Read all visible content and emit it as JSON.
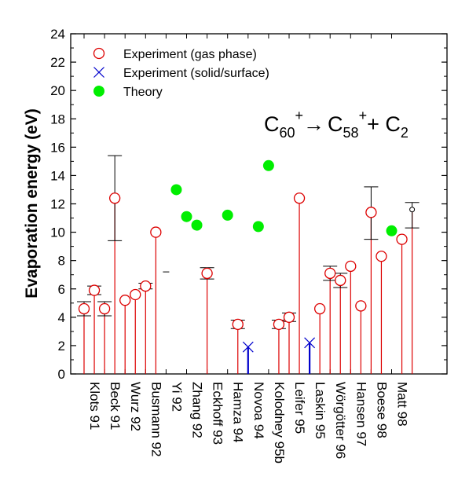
{
  "chart_data": {
    "type": "scatter",
    "ylabel": "Evaporation energy (eV)",
    "ylim": [
      0,
      24
    ],
    "yticks": [
      0,
      2,
      4,
      6,
      8,
      10,
      12,
      14,
      16,
      18,
      20,
      22,
      24
    ],
    "grid": false,
    "legend_position": "top-left",
    "colors": {
      "gas": "#dd0000",
      "solid": "#0000cc",
      "theory": "#00ee00",
      "axis": "#000000"
    },
    "legend": [
      {
        "key": "gas",
        "label": "Experiment (gas phase)"
      },
      {
        "key": "solid",
        "label": "Experiment (solid/surface)"
      },
      {
        "key": "theory",
        "label": "Theory"
      }
    ],
    "annotation": {
      "reaction": "C60+ → C58+ + C2",
      "c": "C",
      "n1": "60",
      "plus": "+",
      "arrow": "→",
      "n2": "58",
      "tail": "+ C",
      "n3": "2"
    },
    "categories": [
      "Klots 91",
      "Beck 91",
      "Wurz 92",
      "Busmann 92",
      "Yi 92",
      "Zhang 92",
      "Eckhoff 93",
      "Hamza 94",
      "Novoa 94",
      "Kolodney 95b",
      "Leifer 95",
      "Laskin 95",
      "Wörgötter 96",
      "Hansen 97",
      "Boese 98",
      "Matt 98"
    ],
    "points": [
      {
        "type": "gas",
        "x": 0.0,
        "y": 4.6,
        "err": [
          4.1,
          5.1
        ]
      },
      {
        "type": "gas",
        "x": 0.5,
        "y": 5.9,
        "err": [
          5.6,
          6.2
        ]
      },
      {
        "type": "gas",
        "x": 1.0,
        "y": 4.6,
        "err": [
          4.1,
          5.1
        ]
      },
      {
        "type": "gas",
        "x": 1.5,
        "y": 12.4,
        "err": [
          9.4,
          15.4
        ]
      },
      {
        "type": "gas",
        "x": 2.0,
        "y": 5.2
      },
      {
        "type": "gas",
        "x": 2.5,
        "y": 5.6
      },
      {
        "type": "gas",
        "x": 3.0,
        "y": 6.2,
        "err": [
          6.0,
          6.4
        ]
      },
      {
        "type": "gas",
        "x": 3.5,
        "y": 10.0
      },
      {
        "type": "marker",
        "x": 4.0,
        "y": 7.2
      },
      {
        "type": "theory",
        "x": 4.5,
        "y": 13.0
      },
      {
        "type": "theory",
        "x": 5.0,
        "y": 11.1
      },
      {
        "type": "theory",
        "x": 5.5,
        "y": 10.5
      },
      {
        "type": "gas",
        "x": 6.0,
        "y": 7.1,
        "err": [
          6.7,
          7.5
        ]
      },
      {
        "type": "theory",
        "x": 7.0,
        "y": 11.2
      },
      {
        "type": "gas",
        "x": 7.5,
        "y": 3.5,
        "err": [
          3.2,
          3.8
        ]
      },
      {
        "type": "solid",
        "x": 8.0,
        "y": 1.9
      },
      {
        "type": "theory",
        "x": 8.5,
        "y": 10.4
      },
      {
        "type": "theory",
        "x": 9.0,
        "y": 14.7
      },
      {
        "type": "gas",
        "x": 9.5,
        "y": 3.5,
        "err": [
          3.2,
          3.8
        ]
      },
      {
        "type": "gas",
        "x": 10.0,
        "y": 4.0,
        "err": [
          3.7,
          4.3
        ]
      },
      {
        "type": "gas",
        "x": 10.5,
        "y": 12.4
      },
      {
        "type": "solid",
        "x": 11.0,
        "y": 2.2
      },
      {
        "type": "gas",
        "x": 11.5,
        "y": 4.6
      },
      {
        "type": "gas",
        "x": 12.0,
        "y": 7.1,
        "err": [
          6.6,
          7.6
        ]
      },
      {
        "type": "gas",
        "x": 12.5,
        "y": 6.6,
        "err": [
          6.1,
          7.1
        ]
      },
      {
        "type": "gas",
        "x": 13.0,
        "y": 7.6
      },
      {
        "type": "gas",
        "x": 13.5,
        "y": 4.8
      },
      {
        "type": "gas",
        "x": 14.0,
        "y": 11.4,
        "err": [
          9.5,
          13.2
        ]
      },
      {
        "type": "gas",
        "x": 14.5,
        "y": 8.3
      },
      {
        "type": "theory",
        "x": 15.0,
        "y": 10.1
      },
      {
        "type": "gas",
        "x": 15.5,
        "y": 9.5
      },
      {
        "type": "gas_small",
        "x": 16.0,
        "y": 11.6,
        "err": [
          10.3,
          12.1
        ]
      }
    ]
  }
}
